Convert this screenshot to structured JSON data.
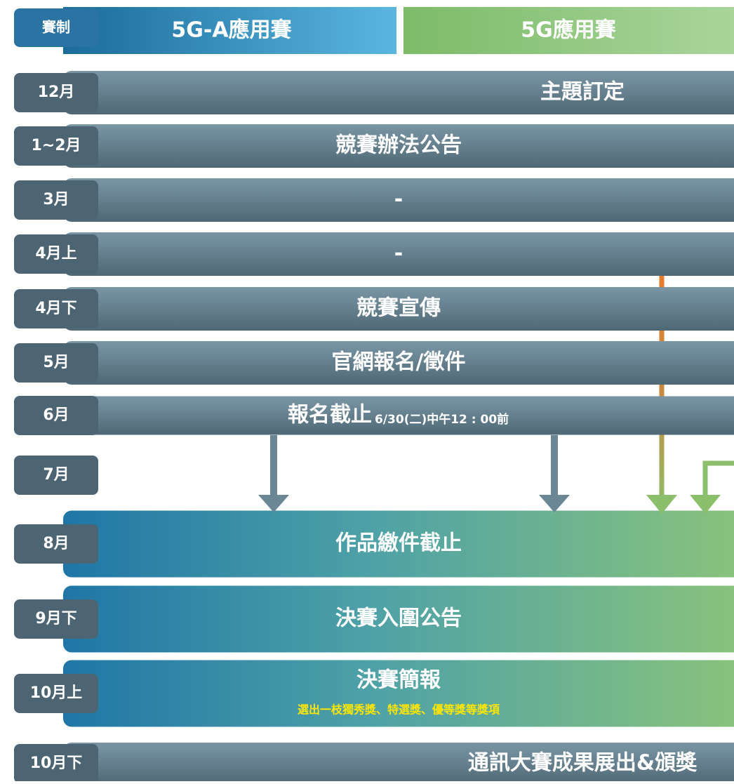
{
  "header": {
    "label": "賽制",
    "columns": [
      "5G-A應用賽",
      "5G應用賽"
    ]
  },
  "rows": [
    {
      "month": "12月",
      "text": "主題訂定"
    },
    {
      "month": "1~2月",
      "text": "競賽辦法公告"
    },
    {
      "month": "3月",
      "text": "-"
    },
    {
      "month": "4月上",
      "text": "-"
    },
    {
      "month": "4月下",
      "text": "競賽宣傳"
    },
    {
      "month": "5月",
      "text": "官網報名/徵件"
    },
    {
      "month": "6月",
      "text": "報名截止",
      "note": "6/30(二)中午12 : 00前"
    },
    {
      "month": "7月"
    },
    {
      "month": "8月",
      "text": "作品繳件截止"
    },
    {
      "month": "9月下",
      "text": "決賽入圍公告"
    },
    {
      "month": "10月上",
      "text": "決賽簡報",
      "note": "選出一枝獨秀獎、特選獎、優等獎等獎項"
    },
    {
      "month": "10月下",
      "text": "通訊大賽成果展出&頒獎"
    }
  ]
}
